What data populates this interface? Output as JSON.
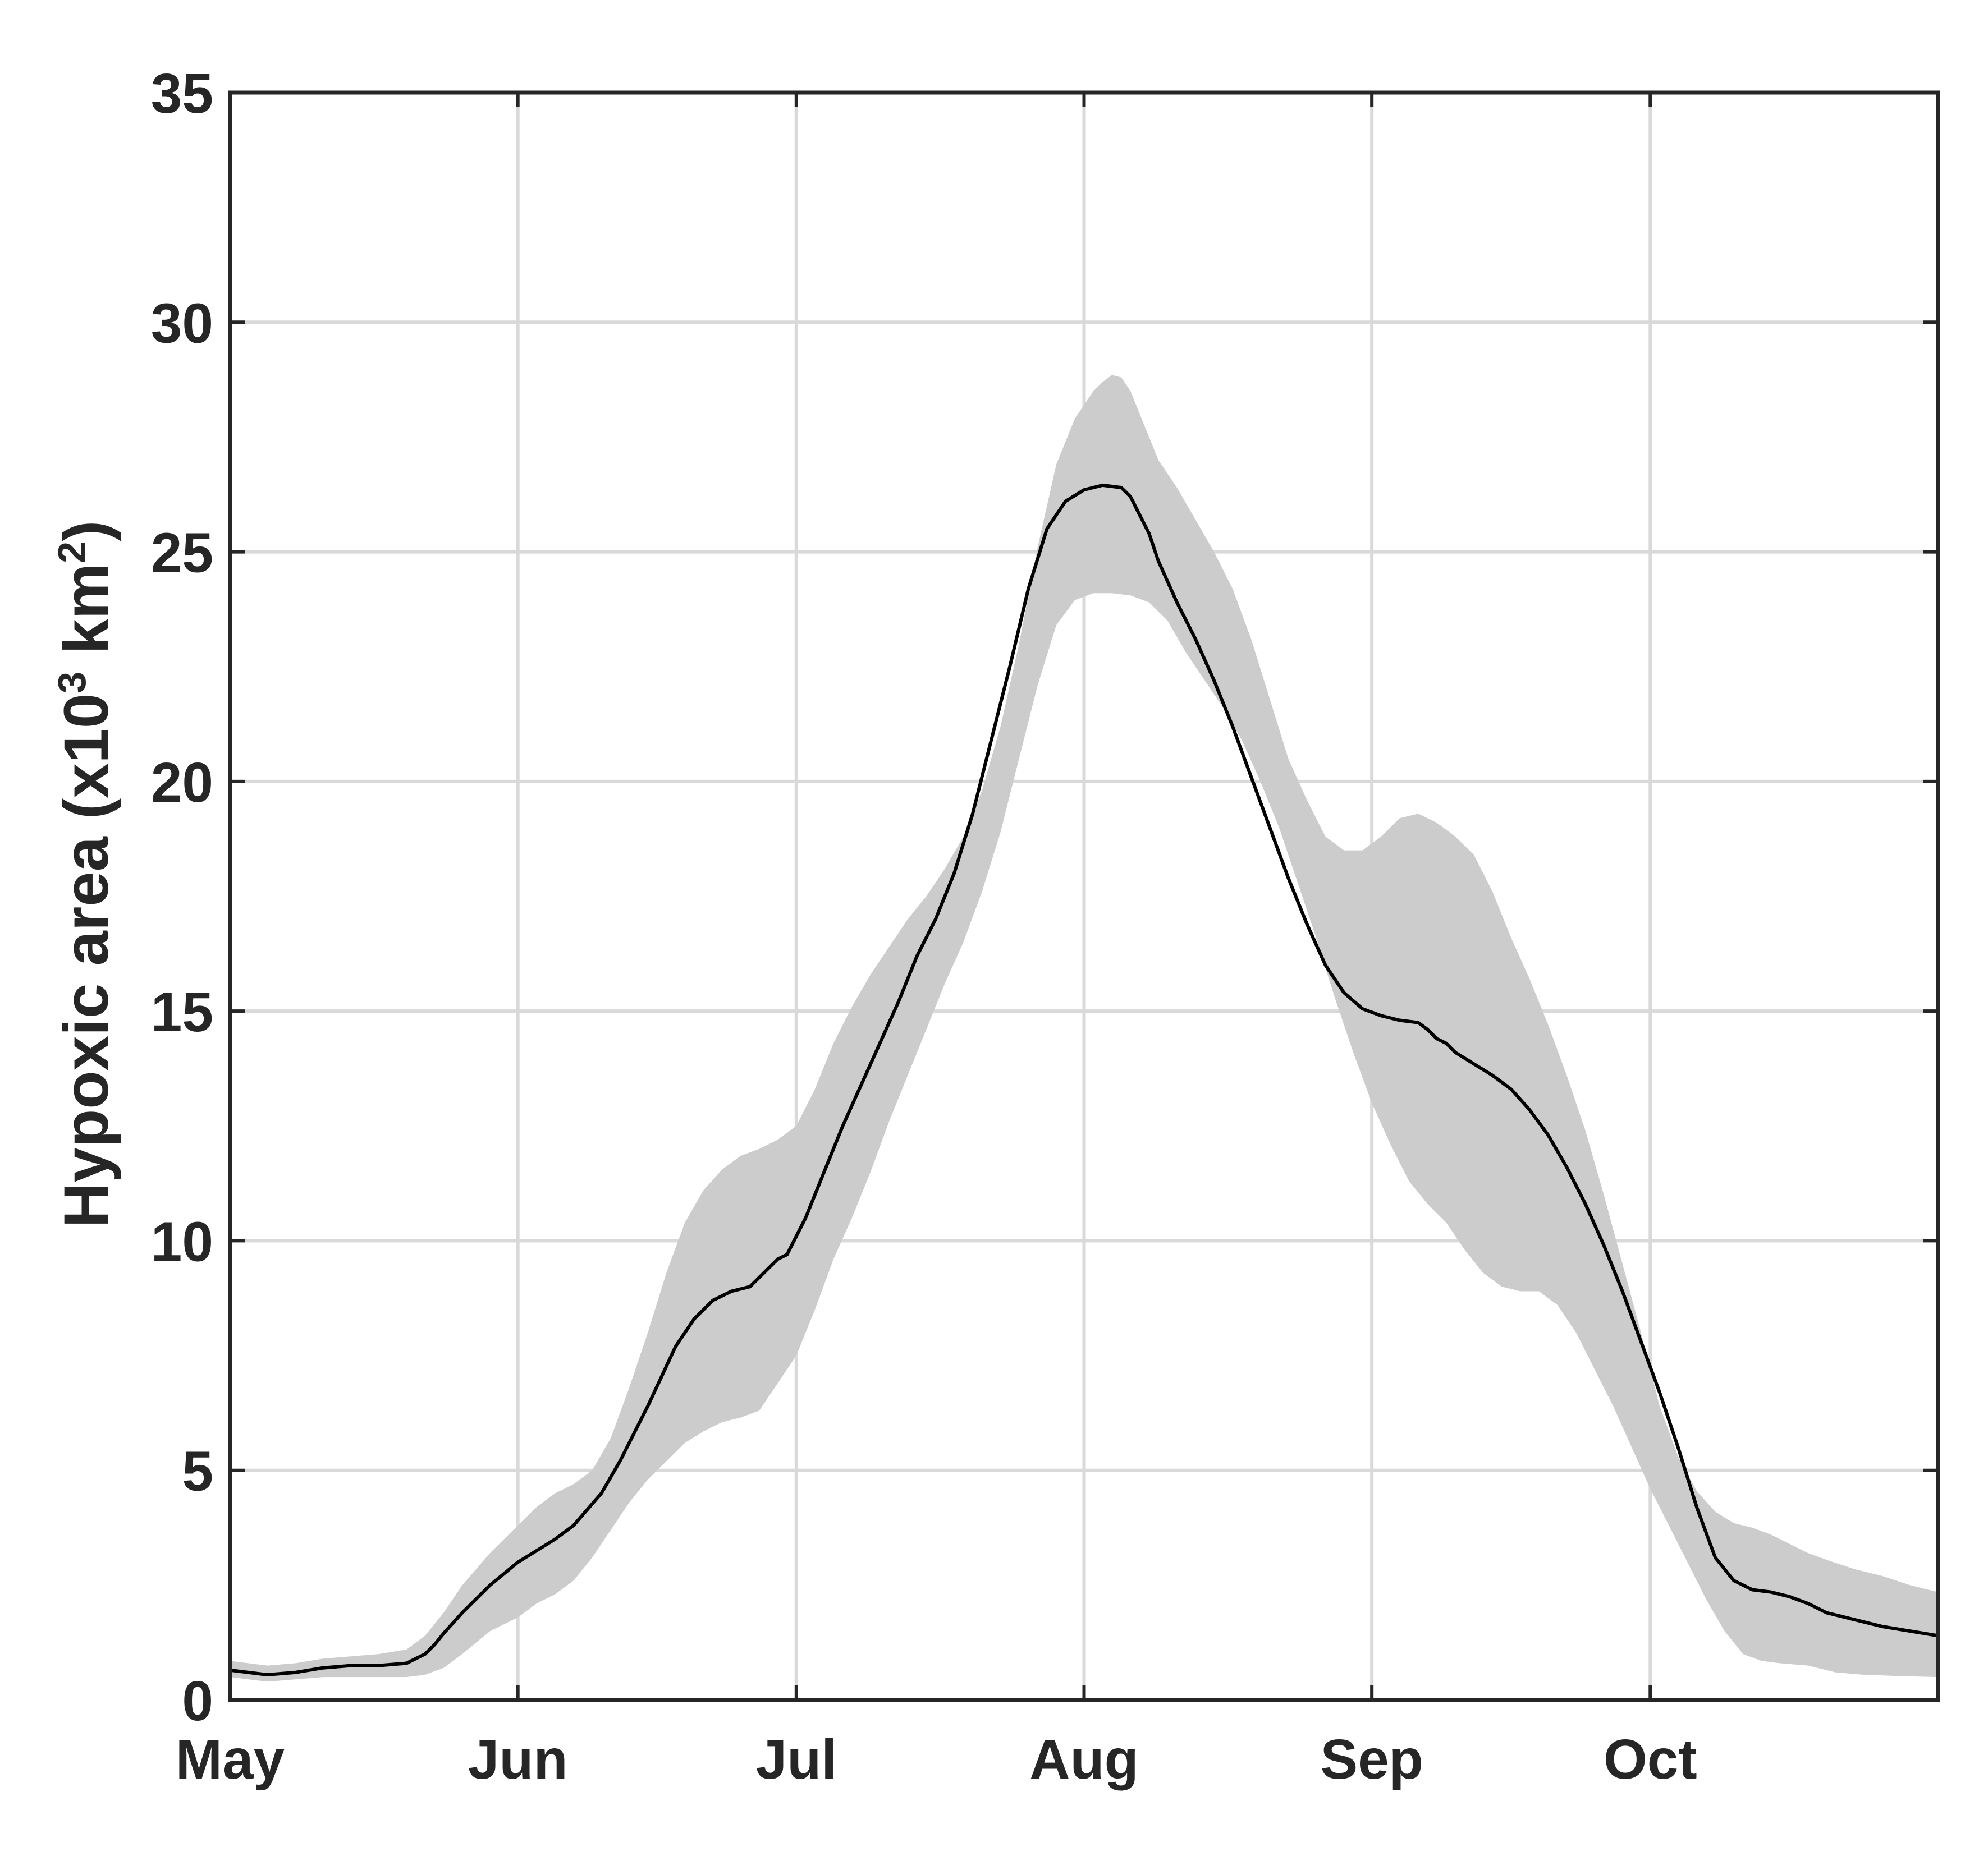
{
  "chart_data": {
    "type": "line",
    "title": "",
    "xlabel": "",
    "ylabel": {
      "prefix": "Hypoxic area (x10",
      "sup1": "3",
      "middle": " km",
      "sup2": "2",
      "suffix": ")"
    },
    "xlim": [
      0,
      184
    ],
    "ylim": [
      0,
      35
    ],
    "x_ticks": [
      {
        "label": "May",
        "value": 0
      },
      {
        "label": "Jun",
        "value": 31
      },
      {
        "label": "Jul",
        "value": 61
      },
      {
        "label": "Aug",
        "value": 92
      },
      {
        "label": "Sep",
        "value": 123
      },
      {
        "label": "Oct",
        "value": 153
      }
    ],
    "y_ticks": [
      0,
      5,
      10,
      15,
      20,
      25,
      30,
      35
    ],
    "grid": true,
    "colors": {
      "mean_line": "#000000",
      "band": "#cccccc",
      "grid": "#d9d9d9",
      "axes": "#262626"
    },
    "series": [
      {
        "role": "mean",
        "x": [
          0,
          4,
          7,
          10,
          13,
          16,
          19,
          21,
          22,
          23,
          25,
          28,
          31,
          33,
          35,
          37,
          40,
          42,
          45,
          48,
          50,
          52,
          54,
          56,
          58,
          59,
          60,
          62,
          64,
          66,
          68,
          70,
          72,
          74,
          76,
          78,
          80,
          82,
          84,
          86,
          88,
          90,
          92,
          94,
          96,
          97,
          98,
          99,
          100,
          102,
          104,
          106,
          108,
          110,
          112,
          114,
          116,
          118,
          120,
          122,
          124,
          126,
          128,
          129,
          130,
          131,
          132,
          134,
          136,
          138,
          140,
          142,
          144,
          146,
          148,
          150,
          152,
          154,
          156,
          158,
          160,
          162,
          164,
          166,
          168,
          170,
          172,
          175,
          178,
          181,
          184
        ],
        "y": [
          0.65,
          0.55,
          0.6,
          0.7,
          0.75,
          0.75,
          0.8,
          1.0,
          1.2,
          1.45,
          1.9,
          2.5,
          3.0,
          3.25,
          3.5,
          3.8,
          4.5,
          5.2,
          6.4,
          7.7,
          8.3,
          8.7,
          8.9,
          9.0,
          9.4,
          9.6,
          9.7,
          10.5,
          11.5,
          12.5,
          13.4,
          14.3,
          15.2,
          16.2,
          17.0,
          18.0,
          19.3,
          20.9,
          22.5,
          24.2,
          25.5,
          26.1,
          26.35,
          26.45,
          26.4,
          26.2,
          25.8,
          25.4,
          24.8,
          23.9,
          23.1,
          22.2,
          21.2,
          20.1,
          19.0,
          17.9,
          16.9,
          16.0,
          15.4,
          15.05,
          14.9,
          14.8,
          14.75,
          14.6,
          14.4,
          14.3,
          14.1,
          13.85,
          13.6,
          13.3,
          12.85,
          12.3,
          11.6,
          10.8,
          9.9,
          8.9,
          7.8,
          6.7,
          5.5,
          4.2,
          3.1,
          2.6,
          2.4,
          2.35,
          2.25,
          2.1,
          1.9,
          1.75,
          1.6,
          1.5,
          1.4
        ]
      },
      {
        "role": "band-upper",
        "x": [
          0,
          4,
          7,
          10,
          13,
          16,
          19,
          21,
          23,
          25,
          28,
          31,
          33,
          35,
          37,
          39,
          41,
          43,
          45,
          47,
          49,
          51,
          53,
          55,
          57,
          59,
          61,
          63,
          65,
          67,
          69,
          71,
          73,
          75,
          77,
          79,
          81,
          83,
          85,
          87,
          89,
          91,
          93,
          94,
          95,
          96,
          97,
          98,
          100,
          102,
          104,
          106,
          108,
          110,
          112,
          114,
          116,
          118,
          120,
          122,
          124,
          126,
          128,
          130,
          131,
          132,
          134,
          136,
          138,
          140,
          142,
          144,
          146,
          148,
          150,
          152,
          154,
          156,
          158,
          160,
          162,
          164,
          166,
          168,
          170,
          172,
          175,
          178,
          181,
          184
        ],
        "y": [
          0.85,
          0.75,
          0.8,
          0.9,
          0.95,
          1.0,
          1.1,
          1.4,
          1.9,
          2.5,
          3.2,
          3.8,
          4.2,
          4.5,
          4.7,
          5.0,
          5.7,
          6.8,
          8.0,
          9.3,
          10.4,
          11.1,
          11.55,
          11.85,
          12.0,
          12.2,
          12.5,
          13.3,
          14.3,
          15.1,
          15.8,
          16.4,
          17.0,
          17.5,
          18.1,
          18.8,
          19.8,
          21.2,
          23.0,
          25.1,
          26.9,
          27.9,
          28.5,
          28.7,
          28.85,
          28.8,
          28.5,
          28.0,
          27.0,
          26.4,
          25.7,
          25.0,
          24.2,
          23.1,
          21.8,
          20.5,
          19.6,
          18.8,
          18.5,
          18.5,
          18.8,
          19.2,
          19.3,
          19.1,
          18.95,
          18.8,
          18.4,
          17.6,
          16.6,
          15.7,
          14.7,
          13.6,
          12.4,
          11.0,
          9.5,
          8.0,
          6.4,
          5.3,
          4.55,
          4.1,
          3.85,
          3.75,
          3.6,
          3.4,
          3.2,
          3.05,
          2.85,
          2.7,
          2.5,
          2.35
        ]
      },
      {
        "role": "band-lower",
        "x": [
          0,
          4,
          7,
          10,
          13,
          16,
          19,
          21,
          23,
          25,
          28,
          31,
          33,
          35,
          37,
          39,
          41,
          43,
          45,
          47,
          49,
          51,
          53,
          55,
          57,
          59,
          61,
          63,
          65,
          67,
          69,
          71,
          73,
          75,
          77,
          79,
          81,
          83,
          85,
          87,
          89,
          91,
          93,
          95,
          97,
          99,
          101,
          103,
          105,
          107,
          109,
          111,
          113,
          115,
          117,
          119,
          121,
          123,
          125,
          127,
          129,
          131,
          133,
          135,
          137,
          139,
          141,
          143,
          145,
          147,
          149,
          151,
          153,
          155,
          157,
          159,
          161,
          163,
          165,
          167,
          170,
          173,
          176,
          180,
          184
        ],
        "y": [
          0.5,
          0.4,
          0.45,
          0.5,
          0.5,
          0.5,
          0.5,
          0.55,
          0.7,
          1.0,
          1.5,
          1.8,
          2.1,
          2.3,
          2.6,
          3.1,
          3.7,
          4.3,
          4.8,
          5.2,
          5.6,
          5.85,
          6.05,
          6.15,
          6.3,
          6.9,
          7.5,
          8.5,
          9.6,
          10.5,
          11.5,
          12.6,
          13.6,
          14.6,
          15.6,
          16.5,
          17.6,
          18.9,
          20.5,
          22.1,
          23.4,
          23.95,
          24.1,
          24.1,
          24.05,
          23.9,
          23.5,
          22.8,
          22.2,
          21.6,
          20.9,
          20.0,
          19.0,
          17.8,
          16.6,
          15.3,
          14.1,
          13.0,
          12.1,
          11.3,
          10.8,
          10.4,
          9.8,
          9.3,
          9.0,
          8.9,
          8.9,
          8.6,
          8.0,
          7.2,
          6.4,
          5.5,
          4.6,
          3.8,
          3.0,
          2.2,
          1.5,
          1.0,
          0.85,
          0.8,
          0.75,
          0.6,
          0.55,
          0.52,
          0.5
        ]
      }
    ]
  }
}
